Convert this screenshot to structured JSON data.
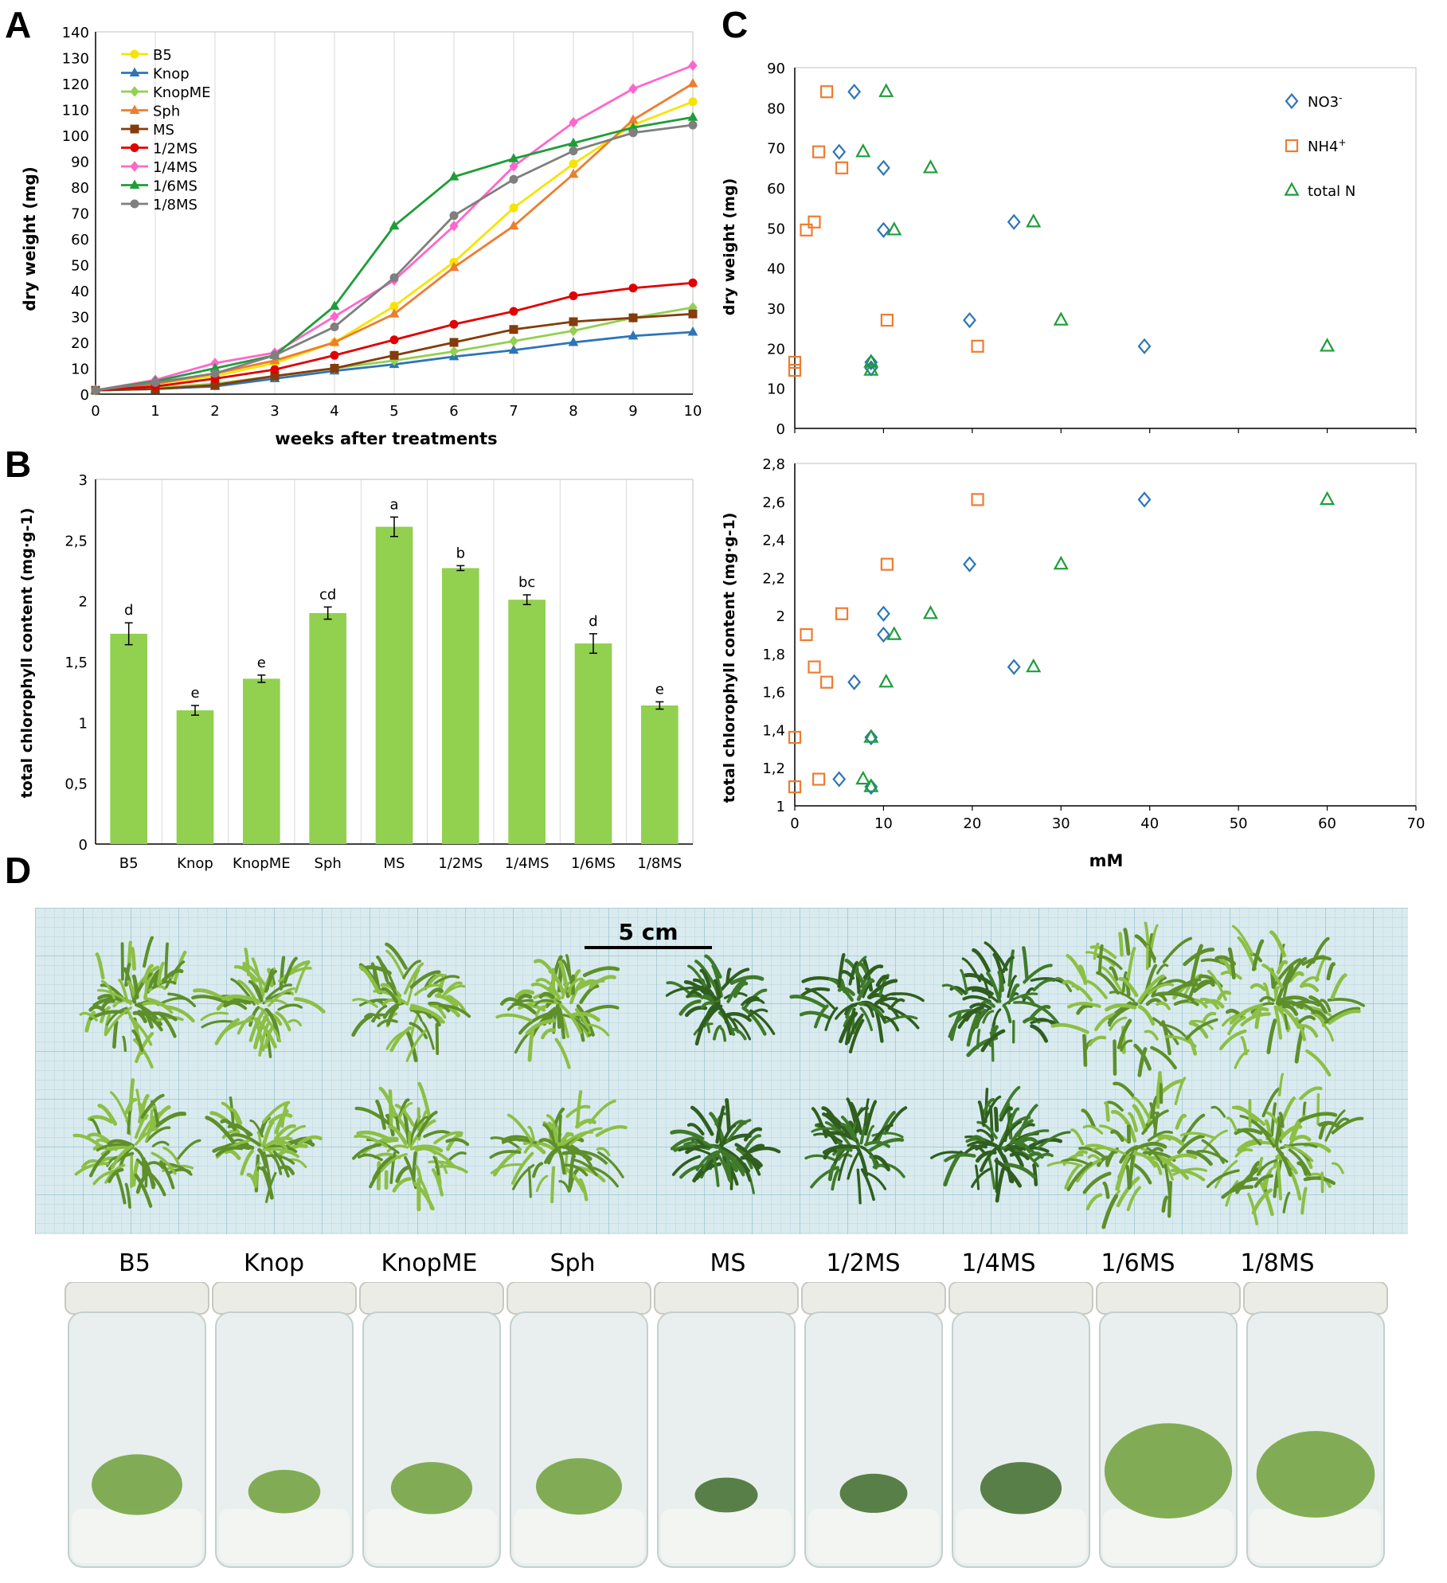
{
  "panels": {
    "a": "A",
    "b": "B",
    "c": "C",
    "d": "D"
  },
  "panelA": {
    "chart_data": {
      "type": "line",
      "xlabel": "weeks after treatments",
      "ylabel": "dry weight (mg)",
      "x": [
        0,
        1,
        2,
        3,
        4,
        5,
        6,
        7,
        8,
        9,
        10
      ],
      "xlim": [
        0,
        10
      ],
      "ylim": [
        0,
        140
      ],
      "yticks": [
        0,
        10,
        20,
        30,
        40,
        50,
        60,
        70,
        80,
        90,
        100,
        110,
        120,
        130,
        140
      ],
      "grid": "vertical",
      "legend": "top-left",
      "series": [
        {
          "name": "B5",
          "color": "#f5e400",
          "marker": "circle",
          "values": [
            1.5,
            4,
            7,
            12,
            20,
            34,
            51,
            72,
            89,
            104,
            113
          ]
        },
        {
          "name": "Knop",
          "color": "#2e75b6",
          "marker": "triangle",
          "values": [
            1.5,
            2,
            3,
            6,
            9,
            11.5,
            14.5,
            17,
            20,
            22.5,
            24
          ]
        },
        {
          "name": "KnopME",
          "color": "#92d050",
          "marker": "diamond",
          "values": [
            1.5,
            2.5,
            4,
            7,
            10,
            13,
            16.5,
            20.5,
            24.5,
            29.5,
            33.5
          ]
        },
        {
          "name": "Sph",
          "color": "#ed7d31",
          "marker": "triangle",
          "values": [
            1.5,
            4,
            8,
            13,
            20,
            31,
            49,
            65,
            85,
            106,
            120
          ]
        },
        {
          "name": "MS",
          "color": "#843c0c",
          "marker": "square",
          "values": [
            1.5,
            2,
            3.5,
            7,
            10,
            15,
            20,
            25,
            28,
            29.5,
            31
          ]
        },
        {
          "name": "1/2MS",
          "color": "#e00000",
          "marker": "circle",
          "values": [
            1.5,
            3,
            6,
            9.5,
            15,
            21,
            27,
            32,
            38,
            41,
            43
          ]
        },
        {
          "name": "1/4MS",
          "color": "#ff66cc",
          "marker": "diamond",
          "values": [
            1.5,
            5.5,
            12,
            16,
            30,
            44,
            65,
            88,
            105,
            118,
            127
          ]
        },
        {
          "name": "1/6MS",
          "color": "#1f9d3a",
          "marker": "triangle",
          "values": [
            1.5,
            5,
            10,
            15,
            34,
            65,
            84,
            91,
            97,
            103,
            107
          ]
        },
        {
          "name": "1/8MS",
          "color": "#7f7f7f",
          "marker": "circle",
          "values": [
            1.5,
            4.5,
            8,
            15,
            26,
            45,
            69,
            83,
            94,
            101,
            104
          ]
        }
      ]
    }
  },
  "panelB": {
    "chart_data": {
      "type": "bar",
      "ylabel": "total chlorophyll content (mg·g-1)",
      "categories": [
        "B5",
        "Knop",
        "KnopME",
        "Sph",
        "MS",
        "1/2MS",
        "1/4MS",
        "1/6MS",
        "1/8MS"
      ],
      "values": [
        1.73,
        1.1,
        1.36,
        1.9,
        2.61,
        2.27,
        2.01,
        1.65,
        1.14
      ],
      "errors": [
        0.09,
        0.04,
        0.03,
        0.05,
        0.08,
        0.02,
        0.04,
        0.08,
        0.03
      ],
      "letters": [
        "d",
        "e",
        "e",
        "cd",
        "a",
        "b",
        "bc",
        "d",
        "e"
      ],
      "ylim": [
        0,
        3
      ],
      "yticks": [
        "0",
        "0,5",
        "1",
        "1,5",
        "2",
        "2,5",
        "3"
      ],
      "color": "#92d050",
      "grid": "vertical"
    }
  },
  "panelC": {
    "legend": [
      {
        "name": "NO3",
        "sup": "-",
        "color": "#2e75b6",
        "marker": "diamond"
      },
      {
        "name": "NH4",
        "sup": "+",
        "color": "#ed7d31",
        "marker": "square"
      },
      {
        "name": "total N",
        "sup": "",
        "color": "#1f9d3a",
        "marker": "triangle"
      }
    ],
    "xlabel": "mM",
    "xlim": [
      0,
      70
    ],
    "xticks": [
      0,
      10,
      20,
      30,
      40,
      50,
      60,
      70
    ],
    "top": {
      "chart_data": {
        "type": "scatter",
        "ylabel": "dry weight (mg)",
        "ylim": [
          0,
          90
        ],
        "yticks": [
          "0",
          "10",
          "20",
          "30",
          "40",
          "50",
          "60",
          "70",
          "80",
          "90"
        ],
        "series": [
          {
            "name": "NO3",
            "points": [
              [
                6.7,
                84
              ],
              [
                5,
                69
              ],
              [
                10,
                65
              ],
              [
                10,
                49.5
              ],
              [
                8.6,
                16.5
              ],
              [
                8.6,
                15
              ],
              [
                19.7,
                27
              ],
              [
                24.7,
                51.5
              ],
              [
                39.4,
                20.5
              ]
            ]
          },
          {
            "name": "NH4",
            "points": [
              [
                3.6,
                84
              ],
              [
                2.7,
                69
              ],
              [
                5.3,
                65
              ],
              [
                1.3,
                49.5
              ],
              [
                2.2,
                51.5
              ],
              [
                10.4,
                27
              ],
              [
                20.6,
                20.5
              ],
              [
                0,
                16.5
              ],
              [
                0,
                14.5
              ]
            ]
          },
          {
            "name": "total N",
            "points": [
              [
                10.3,
                84
              ],
              [
                7.7,
                69
              ],
              [
                15.3,
                65
              ],
              [
                11.2,
                49.5
              ],
              [
                8.6,
                16.5
              ],
              [
                8.6,
                14.5
              ],
              [
                30,
                27
              ],
              [
                26.9,
                51.5
              ],
              [
                60,
                20.5
              ]
            ]
          }
        ]
      }
    },
    "bottom": {
      "chart_data": {
        "type": "scatter",
        "ylabel": "total chlorophyll content (mg·g-1)",
        "ylim": [
          1,
          2.8
        ],
        "yticks": [
          "1",
          "1,2",
          "1,4",
          "1,6",
          "1,8",
          "2",
          "2,2",
          "2,4",
          "2,6",
          "2,8"
        ],
        "series": [
          {
            "name": "NO3",
            "points": [
              [
                39.4,
                2.61
              ],
              [
                19.7,
                2.27
              ],
              [
                10,
                2.01
              ],
              [
                10,
                1.9
              ],
              [
                24.7,
                1.73
              ],
              [
                6.7,
                1.65
              ],
              [
                8.6,
                1.36
              ],
              [
                5,
                1.14
              ],
              [
                8.6,
                1.1
              ]
            ]
          },
          {
            "name": "NH4",
            "points": [
              [
                20.6,
                2.61
              ],
              [
                10.4,
                2.27
              ],
              [
                5.3,
                2.01
              ],
              [
                1.3,
                1.9
              ],
              [
                2.2,
                1.73
              ],
              [
                3.6,
                1.65
              ],
              [
                0,
                1.36
              ],
              [
                2.7,
                1.14
              ],
              [
                0,
                1.1
              ]
            ]
          },
          {
            "name": "total N",
            "points": [
              [
                60,
                2.61
              ],
              [
                30,
                2.27
              ],
              [
                15.3,
                2.01
              ],
              [
                11.2,
                1.9
              ],
              [
                26.9,
                1.73
              ],
              [
                10.3,
                1.65
              ],
              [
                8.6,
                1.36
              ],
              [
                7.7,
                1.14
              ],
              [
                8.6,
                1.1
              ]
            ]
          }
        ]
      }
    }
  },
  "panelD": {
    "scale_label": "5 cm",
    "labels": [
      "B5",
      "Knop",
      "KnopME",
      "Sph",
      "MS",
      "1/2MS",
      "1/4MS",
      "1/6MS",
      "1/8MS"
    ],
    "growth": [
      0.55,
      0.35,
      0.45,
      0.5,
      0.25,
      0.3,
      0.45,
      0.95,
      0.85
    ]
  }
}
